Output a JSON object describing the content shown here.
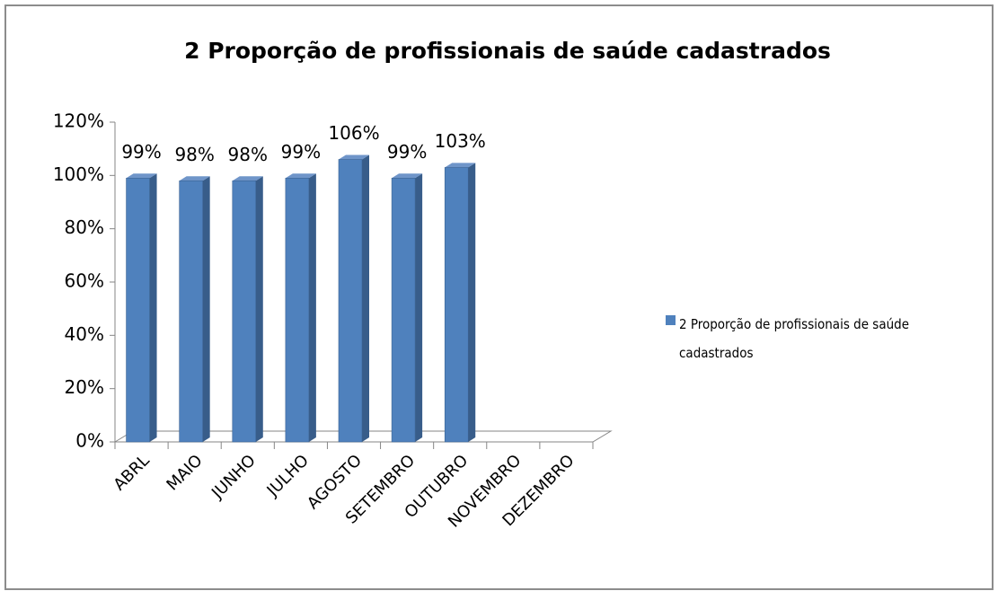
{
  "chart_data": {
    "type": "bar",
    "title": "2 Proporção de profissionais de saúde cadastrados",
    "categories": [
      "ABRL",
      "MAIO",
      "JUNHO",
      "JULHO",
      "AGOSTO",
      "SETEMBRO",
      "OUTUBRO",
      "NOVEMBRO",
      "DEZEMBRO"
    ],
    "series": [
      {
        "name": "2 Proporção de profissionais de saúde cadastrados",
        "color": "#4f81bd",
        "values": [
          99,
          98,
          98,
          99,
          106,
          99,
          103,
          null,
          null
        ],
        "value_labels": [
          "99%",
          "98%",
          "98%",
          "99%",
          "106%",
          "99%",
          "103%",
          null,
          null
        ]
      }
    ],
    "ylim": [
      0,
      120
    ],
    "yticks": [
      {
        "value": 0,
        "label": "0%"
      },
      {
        "value": 20,
        "label": "20%"
      },
      {
        "value": 40,
        "label": "40%"
      },
      {
        "value": 60,
        "label": "60%"
      },
      {
        "value": 80,
        "label": "80%"
      },
      {
        "value": 100,
        "label": "100%"
      },
      {
        "value": 120,
        "label": "120%"
      }
    ],
    "legend": "right"
  }
}
